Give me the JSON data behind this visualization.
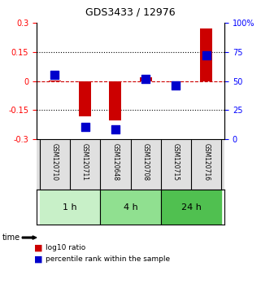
{
  "title": "GDS3433 / 12976",
  "samples": [
    "GSM120710",
    "GSM120711",
    "GSM120648",
    "GSM120708",
    "GSM120715",
    "GSM120716"
  ],
  "log10_ratio": [
    0.002,
    -0.182,
    -0.205,
    0.018,
    -0.008,
    0.272
  ],
  "percentile_rank": [
    55,
    10,
    8,
    52,
    46,
    72
  ],
  "ylim_left": [
    -0.3,
    0.3
  ],
  "ylim_right": [
    0,
    100
  ],
  "yticks_left": [
    -0.3,
    -0.15,
    0,
    0.15,
    0.3
  ],
  "yticks_right": [
    0,
    25,
    50,
    75,
    100
  ],
  "ytick_labels_left": [
    "-0.3",
    "-0.15",
    "0",
    "0.15",
    "0.3"
  ],
  "ytick_labels_right": [
    "0",
    "25",
    "50",
    "75",
    "100%"
  ],
  "hlines": [
    0.15,
    -0.15
  ],
  "bar_color": "#cc0000",
  "dot_color": "#0000cc",
  "dashed_line_color": "#cc0000",
  "time_groups": [
    {
      "label": "1 h",
      "indices": [
        0,
        1
      ],
      "color": "#c8f0c8"
    },
    {
      "label": "4 h",
      "indices": [
        2,
        3
      ],
      "color": "#90e090"
    },
    {
      "label": "24 h",
      "indices": [
        4,
        5
      ],
      "color": "#50c050"
    }
  ],
  "legend_items": [
    {
      "label": "log10 ratio",
      "color": "#cc0000"
    },
    {
      "label": "percentile rank within the sample",
      "color": "#0000cc"
    }
  ],
  "bg_color": "#e0e0e0",
  "bar_width": 0.4,
  "dot_size": 50
}
